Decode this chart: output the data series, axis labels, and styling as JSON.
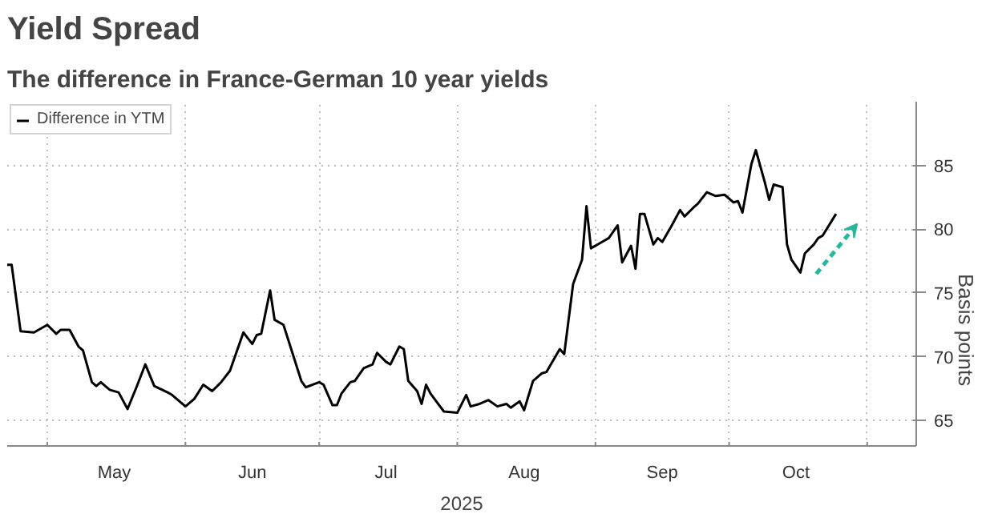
{
  "chart_data": {
    "type": "line",
    "title": "Yield Spread",
    "subtitle": "The difference in France-German 10 year yields",
    "xlabel": "2025",
    "ylabel": "Basis points",
    "series": [
      {
        "name": "Difference in YTM",
        "color": "#000000",
        "x": [
          "2025-04-22",
          "2025-04-23",
          "2025-04-25",
          "2025-04-28",
          "2025-05-01",
          "2025-05-03",
          "2025-05-04",
          "2025-05-06",
          "2025-05-08",
          "2025-05-09",
          "2025-05-11",
          "2025-05-12",
          "2025-05-13",
          "2025-05-15",
          "2025-05-17",
          "2025-05-19",
          "2025-05-21",
          "2025-05-23",
          "2025-05-25",
          "2025-05-28",
          "2025-05-29",
          "2025-06-01",
          "2025-06-03",
          "2025-06-05",
          "2025-06-07",
          "2025-06-09",
          "2025-06-11",
          "2025-06-14",
          "2025-06-16",
          "2025-06-17",
          "2025-06-18",
          "2025-06-20",
          "2025-06-21",
          "2025-06-23",
          "2025-06-25",
          "2025-06-27",
          "2025-06-28",
          "2025-07-01",
          "2025-07-02",
          "2025-07-04",
          "2025-07-05",
          "2025-07-06",
          "2025-07-08",
          "2025-07-09",
          "2025-07-11",
          "2025-07-13",
          "2025-07-14",
          "2025-07-16",
          "2025-07-17",
          "2025-07-19",
          "2025-07-20",
          "2025-07-21",
          "2025-07-23",
          "2025-07-24",
          "2025-07-25",
          "2025-07-26",
          "2025-07-29",
          "2025-08-01",
          "2025-08-03",
          "2025-08-04",
          "2025-08-06",
          "2025-08-08",
          "2025-08-10",
          "2025-08-12",
          "2025-08-13",
          "2025-08-15",
          "2025-08-16",
          "2025-08-18",
          "2025-08-20",
          "2025-08-21",
          "2025-08-24",
          "2025-08-25",
          "2025-08-27",
          "2025-08-29",
          "2025-08-30",
          "2025-08-31",
          "2025-09-02",
          "2025-09-04",
          "2025-09-06",
          "2025-09-07",
          "2025-09-09",
          "2025-09-10",
          "2025-09-11",
          "2025-09-12",
          "2025-09-14",
          "2025-09-15",
          "2025-09-16",
          "2025-09-18",
          "2025-09-20",
          "2025-09-21",
          "2025-09-23",
          "2025-09-24",
          "2025-09-26",
          "2025-09-28",
          "2025-09-30",
          "2025-10-02",
          "2025-10-03",
          "2025-10-04",
          "2025-10-06",
          "2025-10-07",
          "2025-10-09",
          "2025-10-10",
          "2025-10-11",
          "2025-10-13",
          "2025-10-14",
          "2025-10-15",
          "2025-10-17",
          "2025-10-18",
          "2025-10-20",
          "2025-10-21",
          "2025-10-22",
          "2025-10-25"
        ],
        "values": [
          77.2,
          77.2,
          72.0,
          71.9,
          72.5,
          71.8,
          72.1,
          72.1,
          70.8,
          70.5,
          68.0,
          67.7,
          68.0,
          67.4,
          67.2,
          65.9,
          67.6,
          69.4,
          67.7,
          67.2,
          67.0,
          66.1,
          66.7,
          67.8,
          67.3,
          68.0,
          68.9,
          71.9,
          71.0,
          71.7,
          71.8,
          75.2,
          72.9,
          72.5,
          70.3,
          68.1,
          67.6,
          68.0,
          67.8,
          66.2,
          66.2,
          67.1,
          68.0,
          68.1,
          69.1,
          69.4,
          70.3,
          69.6,
          69.4,
          70.8,
          70.6,
          68.1,
          67.3,
          66.3,
          67.8,
          67.1,
          65.7,
          65.6,
          67.0,
          66.1,
          66.3,
          66.6,
          66.1,
          66.3,
          66.0,
          66.5,
          65.8,
          68.1,
          68.7,
          68.8,
          70.6,
          70.2,
          75.7,
          77.6,
          81.8,
          78.5,
          78.9,
          79.3,
          80.3,
          77.4,
          78.7,
          76.9,
          81.2,
          81.2,
          78.8,
          79.3,
          79.0,
          80.2,
          81.5,
          81.0,
          81.7,
          82.0,
          82.9,
          82.6,
          82.7,
          82.1,
          82.2,
          81.3,
          85.1,
          86.2,
          83.7,
          82.3,
          83.5,
          83.3,
          78.8,
          77.6,
          76.6,
          78.1,
          78.8,
          79.3,
          79.5,
          81.2
        ]
      }
    ],
    "xlim": [
      "2025-04-22",
      "2025-11-12"
    ],
    "xticks": [
      {
        "value": "2025-05-01",
        "label": null
      },
      {
        "value": "2025-05-16",
        "label": "May"
      },
      {
        "value": "2025-06-01",
        "label": null
      },
      {
        "value": "2025-06-16",
        "label": "Jun"
      },
      {
        "value": "2025-07-01",
        "label": null
      },
      {
        "value": "2025-07-16",
        "label": "Jul"
      },
      {
        "value": "2025-08-01",
        "label": null
      },
      {
        "value": "2025-08-16",
        "label": "Aug"
      },
      {
        "value": "2025-09-01",
        "label": null
      },
      {
        "value": "2025-09-16",
        "label": "Sep"
      },
      {
        "value": "2025-10-01",
        "label": null
      },
      {
        "value": "2025-10-16",
        "label": "Oct"
      },
      {
        "value": "2025-11-01",
        "label": null
      }
    ],
    "ylim": [
      63,
      90
    ],
    "yticks": [
      65,
      70,
      75,
      80,
      85
    ],
    "grid": true,
    "legend": "top left",
    "marker": "none",
    "line_style": "solid"
  }
}
